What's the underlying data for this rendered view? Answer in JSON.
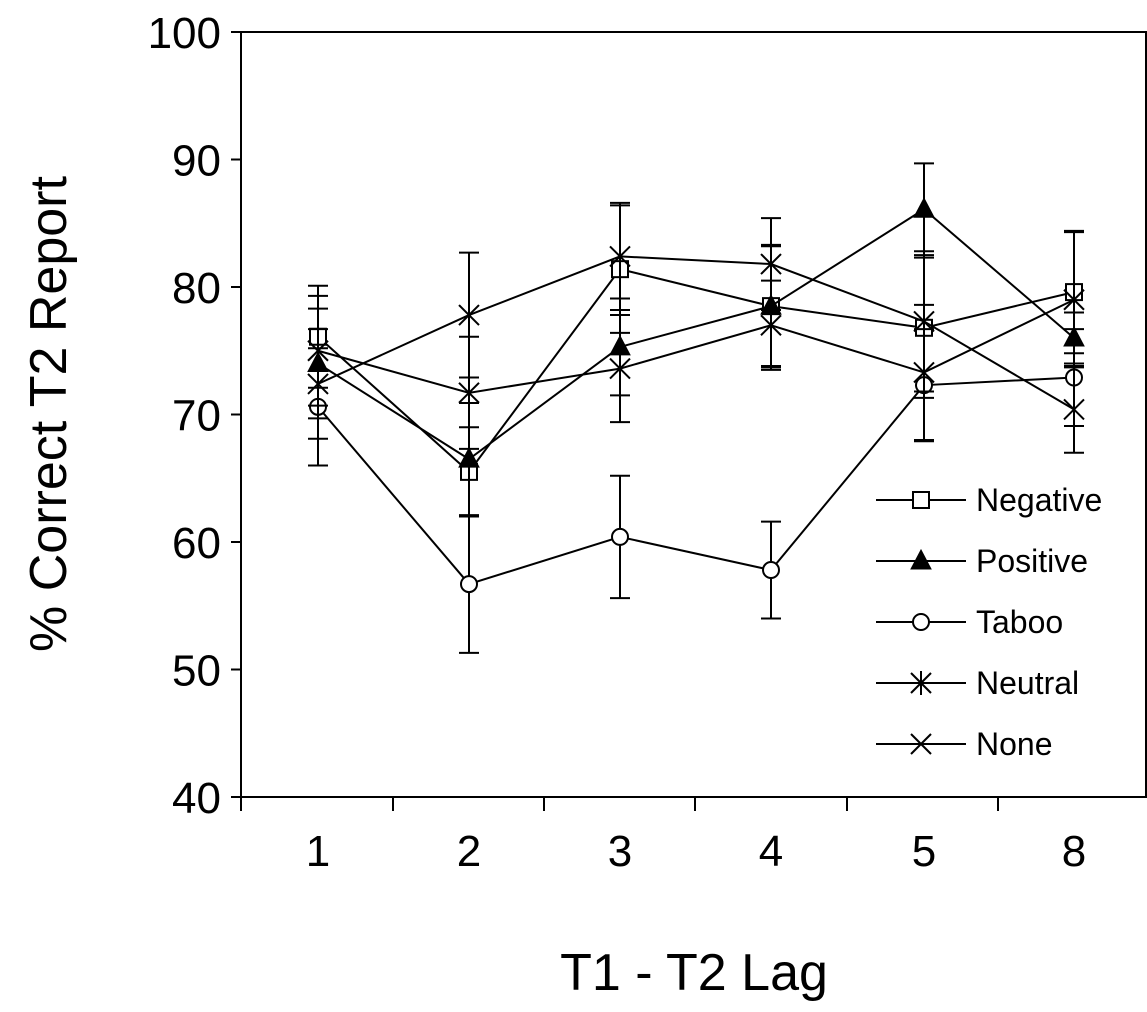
{
  "chart_data": {
    "type": "line",
    "title": "",
    "xlabel": "T1 - T2  Lag",
    "ylabel": "% Correct  T2  Report",
    "categories": [
      "1",
      "2",
      "3",
      "4",
      "5",
      "8"
    ],
    "ylim": [
      40,
      100
    ],
    "yticks": [
      "40",
      "50",
      "60",
      "70",
      "80",
      "90",
      "100"
    ],
    "grid": false,
    "legend_position": "bottom-right",
    "series": [
      {
        "name": "Negative",
        "marker": "open-square",
        "values": [
          76.1,
          65.5,
          81.4,
          78.5,
          76.8,
          79.6
        ],
        "error": [
          4.0,
          3.5,
          5.0,
          4.8,
          5.5,
          4.8
        ]
      },
      {
        "name": "Positive",
        "marker": "filled-triangle",
        "values": [
          74.0,
          66.5,
          75.3,
          78.5,
          86.1,
          76.0
        ],
        "error": [
          4.3,
          4.4,
          3.8,
          4.7,
          3.6,
          2.0
        ]
      },
      {
        "name": "Taboo",
        "marker": "open-circle",
        "values": [
          70.6,
          56.7,
          60.4,
          57.8,
          72.3,
          72.9
        ],
        "error": [
          4.6,
          5.4,
          4.8,
          3.8,
          4.4,
          3.8
        ]
      },
      {
        "name": "Neutral",
        "marker": "asterisk",
        "values": [
          75.0,
          71.7,
          73.6,
          77.0,
          73.3,
          79.0
        ],
        "error": [
          4.3,
          4.4,
          4.2,
          3.5,
          5.3,
          5.3
        ]
      },
      {
        "name": "None",
        "marker": "cross",
        "values": [
          72.4,
          77.8,
          82.4,
          81.8,
          77.3,
          70.4
        ],
        "error": [
          4.3,
          4.9,
          4.2,
          3.6,
          5.5,
          3.4
        ]
      }
    ]
  }
}
